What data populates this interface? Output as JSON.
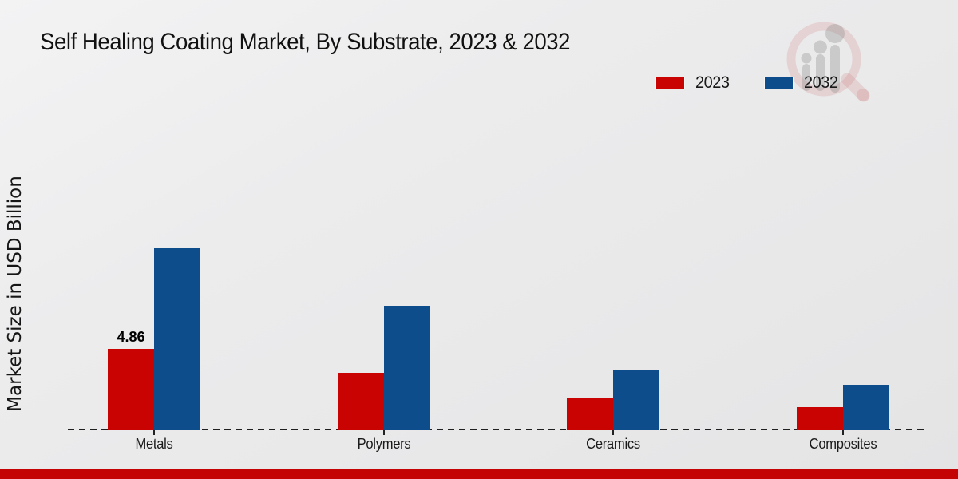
{
  "page": {
    "title": "Self Healing Coating Market, By Substrate, 2023 & 2032",
    "ylabel": "Market Size in USD Billion"
  },
  "colors": {
    "series_2023": "#c90202",
    "series_2032": "#0d4d8c",
    "footer": "#c40404",
    "axis": "#1f1f1f"
  },
  "chart_data": {
    "type": "bar",
    "title": "Self Healing Coating Market, By Substrate, 2023 & 2032",
    "xlabel": "",
    "ylabel": "Market Size in USD Billion",
    "categories": [
      "Metals",
      "Polymers",
      "Ceramics",
      "Composites"
    ],
    "series": [
      {
        "name": "2023",
        "color": "#c90202",
        "values": [
          4.86,
          3.4,
          1.9,
          1.35
        ]
      },
      {
        "name": "2032",
        "color": "#0d4d8c",
        "values": [
          10.9,
          7.45,
          3.6,
          2.7
        ]
      }
    ],
    "data_labels": [
      {
        "series": "2023",
        "category": "Metals",
        "text": "4.86"
      }
    ],
    "ylim": [
      0,
      12
    ],
    "grid": false,
    "axis_style": "dashed-baseline-only",
    "legend_position": "top-right",
    "legend_entries": [
      "2023",
      "2032"
    ]
  },
  "watermark": {
    "name": "magnifier-bar-chart-logo"
  }
}
